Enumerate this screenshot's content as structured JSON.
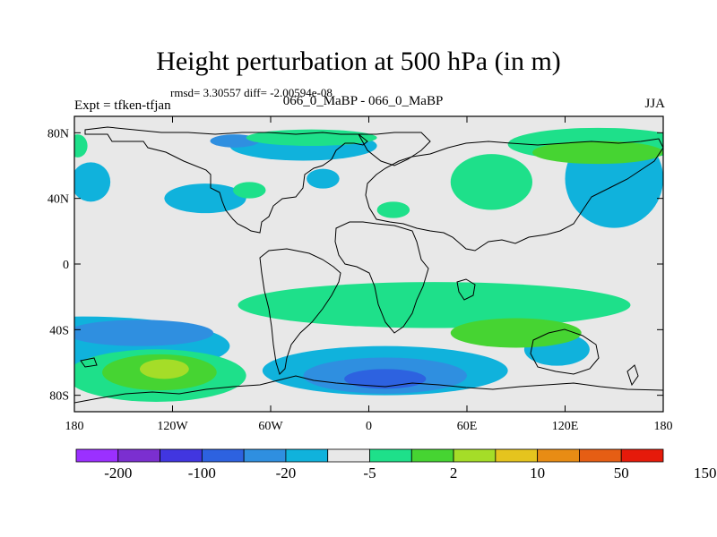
{
  "figure": {
    "title": "Height perturbation at 500 hPa (in m)",
    "stats": "rmsd= 3.30557 diff= -2.00594e-08",
    "left_label": "Expt = tfken-tfjan",
    "center_label": "066_0_MaBP - 066_0_MaBP",
    "right_label": "JJA"
  },
  "chart_data": {
    "type": "heatmap",
    "projection": "cylindrical equidistant",
    "x_range": [
      -180,
      180
    ],
    "y_range": [
      -90,
      90
    ],
    "x_ticks": [
      {
        "value": -180,
        "label": "180"
      },
      {
        "value": -120,
        "label": "120W"
      },
      {
        "value": -60,
        "label": "60W"
      },
      {
        "value": 0,
        "label": "0"
      },
      {
        "value": 60,
        "label": "60E"
      },
      {
        "value": 120,
        "label": "120E"
      },
      {
        "value": 180,
        "label": "180"
      }
    ],
    "y_ticks": [
      {
        "value": 80,
        "label": "80N"
      },
      {
        "value": 40,
        "label": "40N"
      },
      {
        "value": 0,
        "label": "0"
      },
      {
        "value": -40,
        "label": "40S"
      },
      {
        "value": -80,
        "label": "80S"
      }
    ],
    "colorbar": {
      "colors": [
        "#9b30ff",
        "#7b2fd0",
        "#4136e0",
        "#2d62e0",
        "#2f8fe0",
        "#10b2dc",
        "#e8e8e8",
        "#1ee08a",
        "#46d432",
        "#a5dd28",
        "#e5c41e",
        "#e88c14",
        "#e65e14",
        "#e61a0a"
      ],
      "labels": [
        "-200",
        "-100",
        "-20",
        "-5",
        "2",
        "10",
        "50",
        "150"
      ]
    },
    "contours": [
      {
        "level": "-5",
        "color": "#10b2dc",
        "lon": -175,
        "lat": -50,
        "rx": 90,
        "ry": 18
      },
      {
        "level": "-20",
        "color": "#2f8fe0",
        "lon": -140,
        "lat": -42,
        "rx": 45,
        "ry": 8
      },
      {
        "level": "-5",
        "color": "#10b2dc",
        "lon": 10,
        "lat": -65,
        "rx": 75,
        "ry": 15
      },
      {
        "level": "-20",
        "color": "#2f8fe0",
        "lon": 10,
        "lat": -68,
        "rx": 50,
        "ry": 11
      },
      {
        "level": "-100",
        "color": "#2d62e0",
        "lon": 10,
        "lat": -70,
        "rx": 25,
        "ry": 6
      },
      {
        "level": "-5",
        "color": "#10b2dc",
        "lon": 115,
        "lat": -52,
        "rx": 20,
        "ry": 10
      },
      {
        "level": "-5",
        "color": "#10b2dc",
        "lon": -40,
        "lat": 72,
        "rx": 45,
        "ry": 9
      },
      {
        "level": "-20",
        "color": "#2f8fe0",
        "lon": -82,
        "lat": 75,
        "rx": 15,
        "ry": 4
      },
      {
        "level": "-5",
        "color": "#10b2dc",
        "lon": -28,
        "lat": 52,
        "rx": 10,
        "ry": 6
      },
      {
        "level": "-5",
        "color": "#10b2dc",
        "lon": -100,
        "lat": 40,
        "rx": 25,
        "ry": 9
      },
      {
        "level": "-5",
        "color": "#10b2dc",
        "lon": 150,
        "lat": 52,
        "rx": 30,
        "ry": 30
      },
      {
        "level": "-5",
        "color": "#10b2dc",
        "lon": -170,
        "lat": 50,
        "rx": 12,
        "ry": 12
      },
      {
        "level": "2",
        "color": "#1ee08a",
        "lon": 40,
        "lat": -25,
        "rx": 120,
        "ry": 14
      },
      {
        "level": "2",
        "color": "#1ee08a",
        "lon": -130,
        "lat": -68,
        "rx": 55,
        "ry": 16
      },
      {
        "level": "10",
        "color": "#46d432",
        "lon": -128,
        "lat": -66,
        "rx": 35,
        "ry": 11
      },
      {
        "level": "50",
        "color": "#a5dd28",
        "lon": -125,
        "lat": -64,
        "rx": 15,
        "ry": 6
      },
      {
        "level": "10",
        "color": "#46d432",
        "lon": 90,
        "lat": -42,
        "rx": 40,
        "ry": 9
      },
      {
        "level": "2",
        "color": "#1ee08a",
        "lon": 140,
        "lat": 73,
        "rx": 55,
        "ry": 10
      },
      {
        "level": "10",
        "color": "#46d432",
        "lon": 140,
        "lat": 68,
        "rx": 40,
        "ry": 7
      },
      {
        "level": "2",
        "color": "#1ee08a",
        "lon": 75,
        "lat": 50,
        "rx": 25,
        "ry": 17
      },
      {
        "level": "2",
        "color": "#1ee08a",
        "lon": -35,
        "lat": 77,
        "rx": 40,
        "ry": 5
      },
      {
        "level": "2",
        "color": "#1ee08a",
        "lon": -73,
        "lat": 45,
        "rx": 10,
        "ry": 5
      },
      {
        "level": "2",
        "color": "#1ee08a",
        "lon": 15,
        "lat": 33,
        "rx": 10,
        "ry": 5
      },
      {
        "level": "2",
        "color": "#1ee08a",
        "lon": -178,
        "lat": 72,
        "rx": 6,
        "ry": 7
      }
    ]
  }
}
